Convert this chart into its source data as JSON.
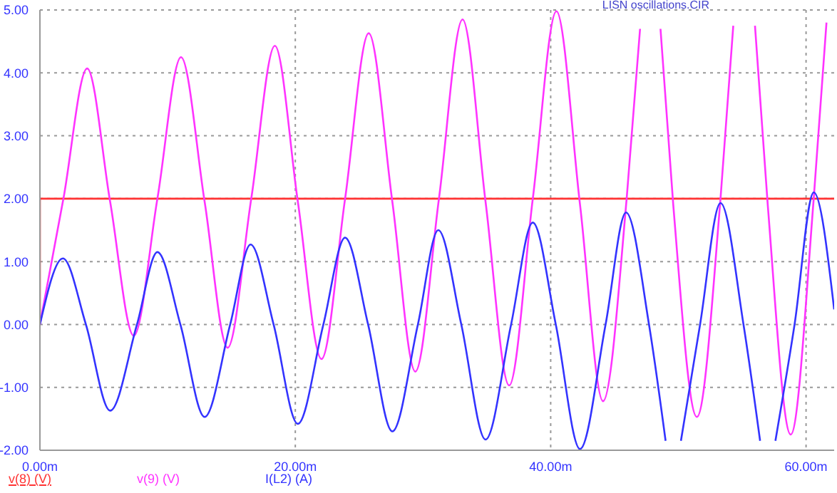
{
  "chart_data": {
    "type": "line",
    "title": "LISN oscillations.CIR",
    "xlim": [
      0,
      62.2
    ],
    "xticks": [
      {
        "value": 0,
        "label": "0.00m"
      },
      {
        "value": 20,
        "label": "20.00m"
      },
      {
        "value": 40,
        "label": "40.00m"
      },
      {
        "value": 60,
        "label": "60.00m"
      }
    ],
    "ylim": [
      -2,
      5
    ],
    "yticks": [
      {
        "value": -2,
        "label": "-2.00"
      },
      {
        "value": -1,
        "label": "-1.00"
      },
      {
        "value": 0,
        "label": "0.00"
      },
      {
        "value": 1,
        "label": "1.00"
      },
      {
        "value": 2,
        "label": "2.00"
      },
      {
        "value": 3,
        "label": "3.00"
      },
      {
        "value": 4,
        "label": "4.00"
      },
      {
        "value": 5,
        "label": "5.00"
      }
    ],
    "grid": true,
    "legend": "bottom",
    "marker": "none",
    "line_style": "solid",
    "series": [
      {
        "name": "v(8) (V)",
        "color": "#ff3333",
        "x": [
          0,
          0,
          62.2
        ],
        "values": [
          0,
          2,
          2
        ]
      },
      {
        "name": "v(9) (V)",
        "color": "#ff33ff",
        "x": [
          0,
          1.84,
          3.7,
          5.5,
          7.35,
          9.2,
          11.05,
          12.9,
          14.7,
          16.55,
          18.4,
          20.2,
          22.05,
          23.9,
          25.75,
          27.6,
          29.4,
          31.25,
          33.1,
          34.9,
          36.75,
          38.6,
          40.45,
          42.3,
          44.1,
          45.95,
          47,
          47.8,
          48.6,
          49.6,
          51.45,
          53.3,
          54.3,
          55.15,
          56,
          57,
          58.8,
          60.6,
          61.6
        ],
        "values": [
          0,
          2,
          4.07,
          1.95,
          -0.18,
          2,
          4.25,
          1.95,
          -0.37,
          2,
          4.43,
          1.95,
          -0.55,
          2,
          4.63,
          1.95,
          -0.75,
          2,
          4.85,
          1.95,
          -0.97,
          2,
          4.98,
          1.9,
          -1.22,
          2,
          4.7,
          null,
          4.7,
          1.9,
          -1.47,
          2,
          4.75,
          null,
          4.75,
          1.9,
          -1.75,
          2,
          4.8
        ]
      },
      {
        "name": "I(L2) (A)",
        "color": "#3333ff",
        "x": [
          0,
          1.8,
          3.6,
          5.5,
          7.6,
          9.2,
          11,
          12.9,
          14.9,
          16.5,
          18.3,
          20.2,
          22.2,
          23.9,
          25.7,
          27.6,
          29.6,
          31.2,
          33,
          34.9,
          36.9,
          38.6,
          40.4,
          42.3,
          44.3,
          45.9,
          47.7,
          49,
          49.6,
          50.2,
          51.7,
          53.3,
          55.1,
          56.4,
          57,
          57.6,
          59.1,
          60.6,
          62.2
        ],
        "values": [
          0,
          1.05,
          0,
          -1.37,
          0,
          1.15,
          0,
          -1.47,
          0,
          1.27,
          0,
          -1.58,
          0,
          1.38,
          0,
          -1.7,
          0,
          1.5,
          0,
          -1.83,
          0,
          1.62,
          0,
          -1.98,
          0,
          1.78,
          0,
          -1.85,
          null,
          -1.85,
          0,
          1.93,
          0,
          -1.85,
          null,
          -1.85,
          0,
          2.1,
          0.24
        ]
      }
    ]
  }
}
